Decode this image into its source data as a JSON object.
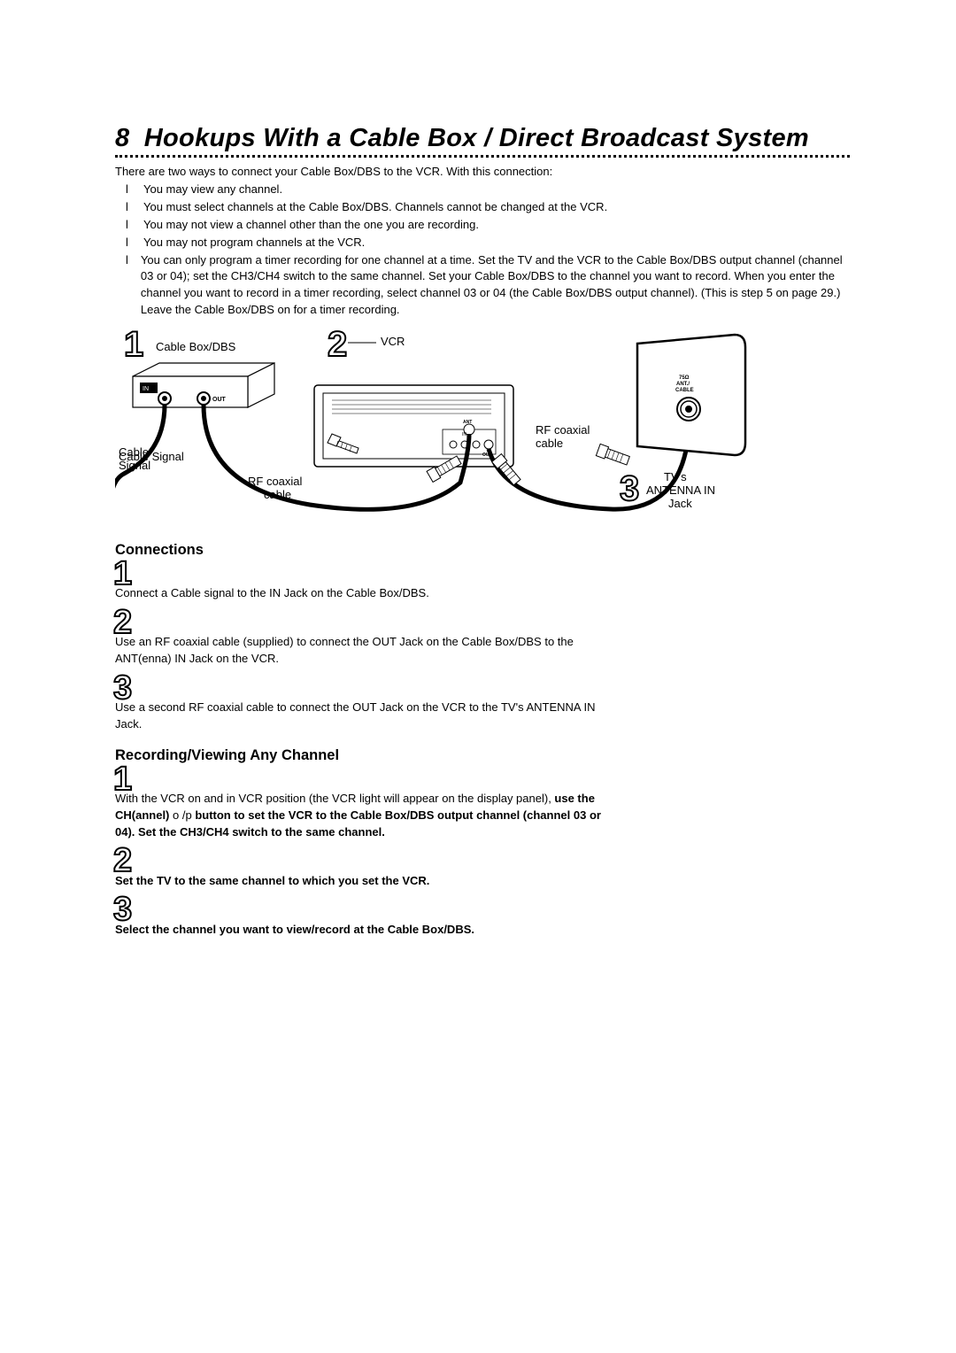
{
  "page_number": "8",
  "title": "Hookups With a Cable Box / Direct Broadcast System",
  "intro": "There are two ways to connect your Cable Box/DBS to the VCR. With this connection:",
  "bullet_char": "l",
  "bullets": [
    "You may view any channel.",
    "You must select channels at the Cable Box/DBS. Channels cannot be changed at the VCR.",
    "You may not view a channel other than the one you are recording.",
    "You may not program channels at the VCR.",
    "You can only program a timer recording for one channel at a time. Set the TV and the VCR to the Cable Box/DBS output channel (channel 03 or 04); set the CH3/CH4 switch to the same channel. Set your Cable Box/DBS to the channel you want to record. When you enter the channel you want to record in a timer recording, select channel 03 or 04 (the Cable Box/DBS output channel). (This is step 5 on page 29.) Leave the Cable Box/DBS on for a timer recording."
  ],
  "diagram": {
    "num1": "1",
    "label1": "Cable Box/DBS",
    "num2": "2",
    "label2": "VCR",
    "num3": "3",
    "label_cable_signal": "Cable Signal",
    "label_rf1": "RF coaxial cable",
    "label_rf2": "RF coaxial cable",
    "label_tv": "TV's ANTENNA IN Jack",
    "label_in": "IN",
    "label_out": "OUT",
    "tv_jack_label": "75Ω ANT./ CABLE"
  },
  "sections": [
    {
      "heading": "Connections",
      "steps": [
        {
          "num": "1",
          "html": "Connect a Cable signal to the IN Jack on the Cable Box/DBS."
        },
        {
          "num": "2",
          "html": "Use an RF coaxial cable (supplied) to connect the OUT Jack on the Cable Box/DBS to the ANT(enna) IN Jack on the VCR."
        },
        {
          "num": "3",
          "html": "Use a second RF coaxial cable to connect the OUT Jack on the VCR to the TV's ANTENNA IN Jack."
        }
      ]
    },
    {
      "heading": "Recording/Viewing Any Channel",
      "steps": [
        {
          "num": "1",
          "html": "With the VCR on and in VCR position (the VCR light will appear on the display panel), <b>use the CH(annel)</b> o /p  <b>button to set the VCR to the Cable Box/DBS output channel (channel 03 or 04). Set the CH3/CH4 switch to the same channel.</b>"
        },
        {
          "num": "2",
          "html": "<b>Set the TV to the same channel to which you set the VCR.</b>"
        },
        {
          "num": "3",
          "html": "<b>Select the channel you want to view/record at the Cable Box/DBS.</b>"
        }
      ]
    }
  ],
  "colors": {
    "text": "#000000",
    "outline_num": "#000000",
    "bg": "#ffffff"
  }
}
